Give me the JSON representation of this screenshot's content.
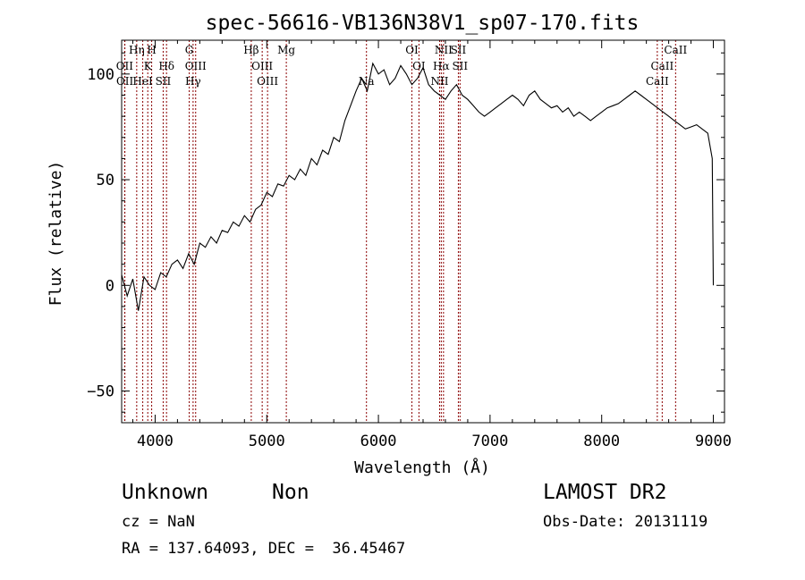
{
  "chart_data": {
    "type": "line",
    "title": "spec-56616-VB136N38V1_sp07-170.fits",
    "xlabel": "Wavelength (Å)",
    "ylabel": "Flux (relative)",
    "xlim": [
      3700,
      9100
    ],
    "ylim": [
      -65,
      116
    ],
    "x_ticks": [
      4000,
      5000,
      6000,
      7000,
      8000,
      9000
    ],
    "y_ticks": [
      -50,
      0,
      50,
      100
    ],
    "x_tick_labels": [
      "4000",
      "5000",
      "6000",
      "7000",
      "8000",
      "9000"
    ],
    "y_tick_labels": [
      "−50",
      "0",
      "50",
      "100"
    ],
    "grid": false,
    "series": [
      {
        "color": "#000000",
        "x": [
          3700,
          3750,
          3800,
          3850,
          3900,
          3950,
          4000,
          4050,
          4100,
          4150,
          4200,
          4250,
          4300,
          4350,
          4400,
          4450,
          4500,
          4550,
          4600,
          4650,
          4700,
          4750,
          4800,
          4850,
          4900,
          4950,
          5000,
          5050,
          5100,
          5150,
          5200,
          5250,
          5300,
          5350,
          5400,
          5450,
          5500,
          5550,
          5600,
          5650,
          5700,
          5750,
          5800,
          5850,
          5900,
          5950,
          6000,
          6050,
          6100,
          6150,
          6200,
          6250,
          6300,
          6350,
          6400,
          6450,
          6500,
          6550,
          6600,
          6650,
          6700,
          6750,
          6800,
          6850,
          6900,
          6950,
          7000,
          7050,
          7100,
          7150,
          7200,
          7250,
          7300,
          7350,
          7400,
          7450,
          7500,
          7550,
          7600,
          7650,
          7700,
          7750,
          7800,
          7850,
          7900,
          7950,
          8000,
          8050,
          8100,
          8150,
          8200,
          8250,
          8300,
          8350,
          8400,
          8450,
          8500,
          8550,
          8600,
          8650,
          8700,
          8750,
          8800,
          8850,
          8900,
          8950,
          8990,
          9000
        ],
        "y": [
          5,
          -5,
          3,
          -12,
          4,
          0,
          -2,
          6,
          4,
          10,
          12,
          8,
          15,
          10,
          20,
          18,
          23,
          20,
          26,
          25,
          30,
          28,
          33,
          30,
          36,
          38,
          44,
          42,
          48,
          47,
          52,
          50,
          55,
          52,
          60,
          57,
          64,
          62,
          70,
          68,
          78,
          85,
          92,
          98,
          92,
          105,
          100,
          102,
          95,
          98,
          104,
          100,
          95,
          98,
          103,
          95,
          92,
          90,
          88,
          92,
          95,
          90,
          88,
          85,
          82,
          80,
          82,
          84,
          86,
          88,
          90,
          88,
          85,
          90,
          92,
          88,
          86,
          84,
          85,
          82,
          84,
          80,
          82,
          80,
          78,
          80,
          82,
          84,
          85,
          86,
          88,
          90,
          92,
          90,
          88,
          86,
          84,
          82,
          80,
          78,
          76,
          74,
          75,
          76,
          74,
          72,
          60,
          0
        ]
      }
    ],
    "lines": [
      {
        "label": "Hη",
        "x": 3835,
        "row": 0
      },
      {
        "label": "H",
        "x": 3969,
        "row": 0
      },
      {
        "label": "G",
        "x": 4305,
        "row": 0
      },
      {
        "label": "Hβ",
        "x": 4861,
        "row": 0
      },
      {
        "label": "Mg",
        "x": 5175,
        "row": 0
      },
      {
        "label": "OI",
        "x": 6300,
        "row": 0
      },
      {
        "label": "NII",
        "x": 6583,
        "row": 0
      },
      {
        "label": "SII",
        "x": 6716,
        "row": 0
      },
      {
        "label": "CaII",
        "x": 8662,
        "row": 0
      },
      {
        "label": "OII",
        "x": 3727,
        "row": 1
      },
      {
        "label": "K",
        "x": 3934,
        "row": 1
      },
      {
        "label": "Hδ",
        "x": 4102,
        "row": 1
      },
      {
        "label": "OIII",
        "x": 4363,
        "row": 1
      },
      {
        "label": "OIII",
        "x": 4959,
        "row": 1
      },
      {
        "label": "OI",
        "x": 6363,
        "row": 1
      },
      {
        "label": "Hα",
        "x": 6563,
        "row": 1
      },
      {
        "label": "SII",
        "x": 6731,
        "row": 1
      },
      {
        "label": "CaII",
        "x": 8542,
        "row": 1
      },
      {
        "label": "OII",
        "x": 3729,
        "row": 2
      },
      {
        "label": "HeI",
        "x": 3889,
        "row": 2
      },
      {
        "label": "SII",
        "x": 4072,
        "row": 2
      },
      {
        "label": "Hγ",
        "x": 4340,
        "row": 2
      },
      {
        "label": "OIII",
        "x": 5007,
        "row": 2
      },
      {
        "label": "Na",
        "x": 5893,
        "row": 2
      },
      {
        "label": "NII",
        "x": 6548,
        "row": 2
      },
      {
        "label": "CaII",
        "x": 8498,
        "row": 2
      }
    ]
  },
  "info": {
    "class": "Unknown",
    "subclass": "Non",
    "survey": "LAMOST DR2",
    "cz": "cz = NaN",
    "obs_date": "Obs-Date: 20131119",
    "coords": "RA = 137.64093, DEC =  36.45467"
  }
}
